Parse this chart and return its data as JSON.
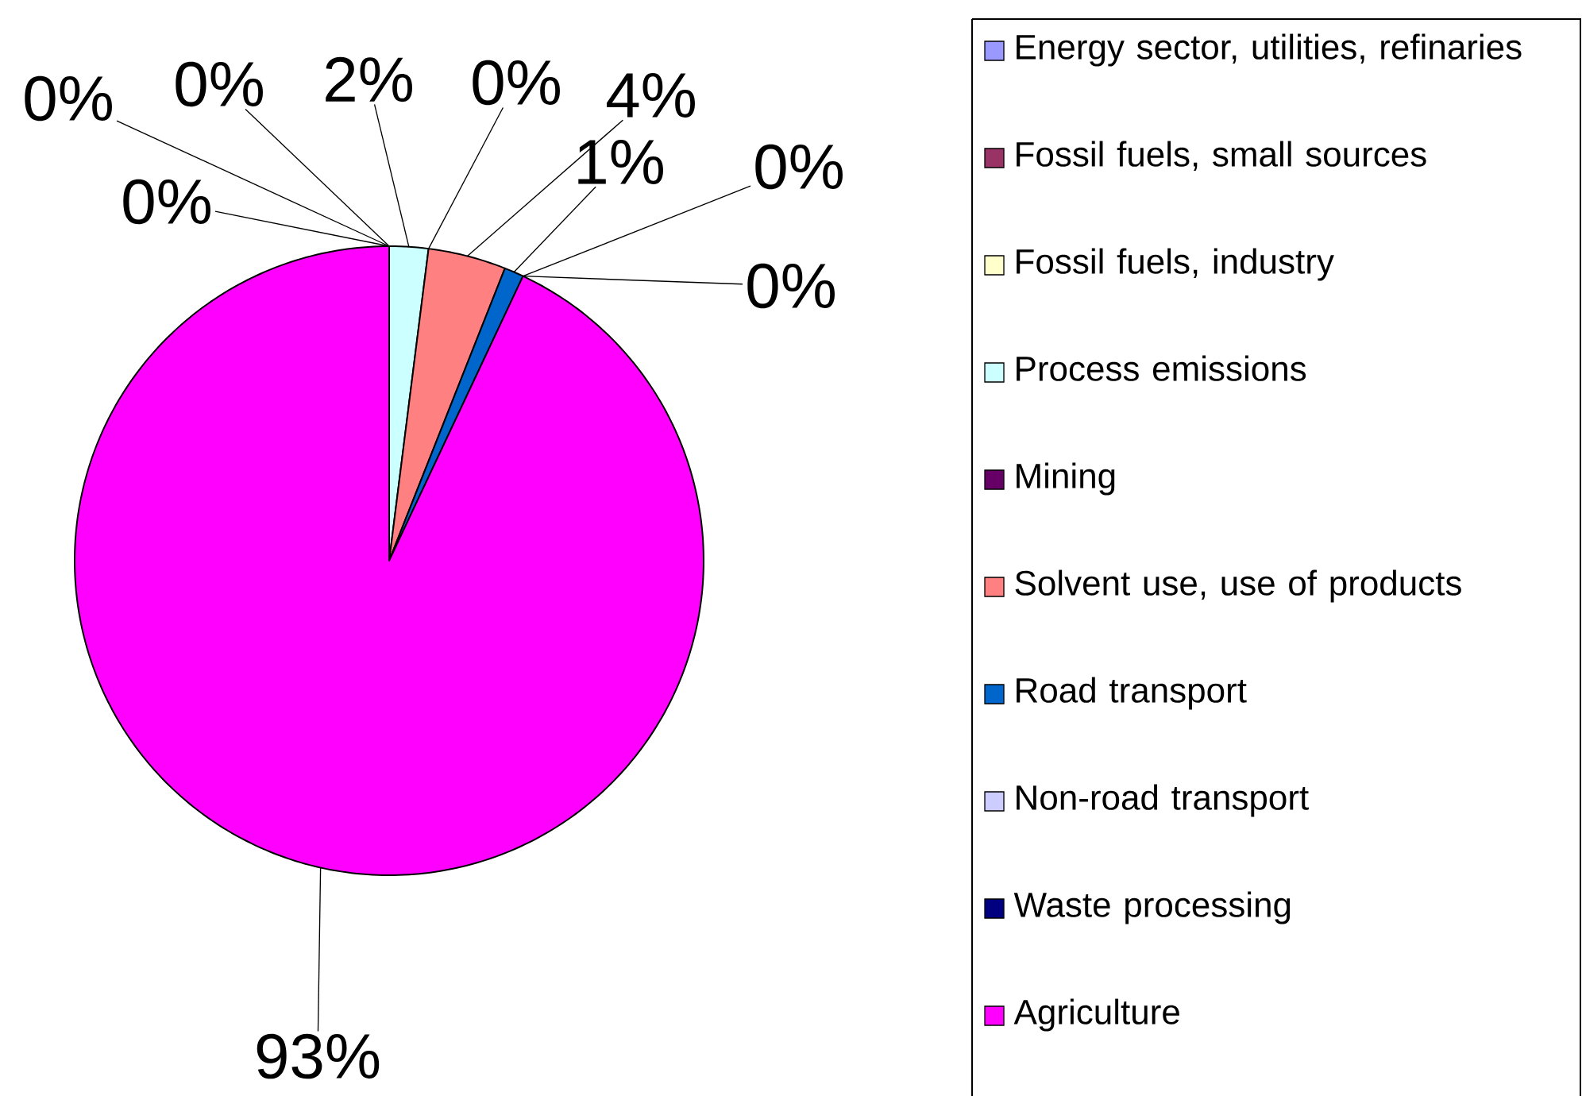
{
  "chart_data": {
    "type": "pie",
    "legend": "right",
    "categories": [
      "Energy sector, utilities, refinaries",
      "Fossil fuels, small sources",
      "Fossil fuels, industry",
      "Process emissions",
      "Mining",
      "Solvent use, use of products",
      "Road transport",
      "Non-road transport",
      "Waste processing",
      "Agriculture"
    ],
    "values": [
      0,
      0,
      0,
      2,
      0,
      4,
      1,
      0,
      0,
      93
    ],
    "value_labels": [
      "0%",
      "0%",
      "0%",
      "2%",
      "0%",
      "4%",
      "1%",
      "0%",
      "0%",
      "93%"
    ],
    "colors": [
      "#9999ff",
      "#993366",
      "#ffffcc",
      "#ccffff",
      "#660066",
      "#ff8080",
      "#0066cc",
      "#ccccff",
      "#000080",
      "#ff00ff"
    ]
  }
}
